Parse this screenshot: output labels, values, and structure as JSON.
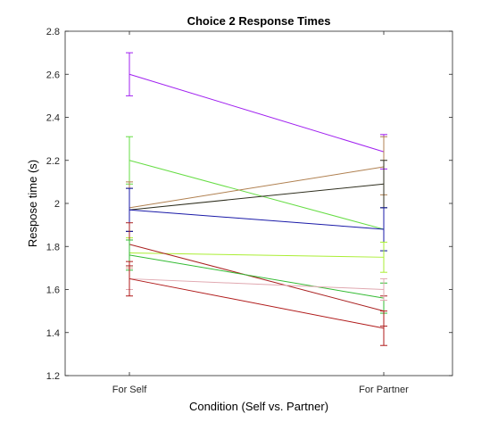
{
  "chart_data": {
    "type": "line",
    "title": "Choice 2 Response Times",
    "xlabel": "Condition (Self vs. Partner)",
    "ylabel": "Respose time (s)",
    "categories": [
      "For Self",
      "For Partner"
    ],
    "ylim": [
      1.2,
      2.8
    ],
    "yticks": [
      "1.2",
      "1.4",
      "1.6",
      "1.8",
      "2",
      "2.2",
      "2.4",
      "2.6",
      "2.8"
    ],
    "grid": false,
    "series": [
      {
        "values": [
          2.6,
          2.24
        ],
        "err": [
          [
            0.1,
            0.1
          ],
          [
            0.08,
            0.08
          ]
        ],
        "color": "#a020f0"
      },
      {
        "values": [
          2.2,
          1.88
        ],
        "err": [
          [
            0.11,
            0.11
          ],
          [
            0.1,
            0.1
          ]
        ],
        "color": "#66dd44"
      },
      {
        "values": [
          1.98,
          2.17
        ],
        "err": [
          [
            0.11,
            0.12
          ],
          [
            0.13,
            0.14
          ]
        ],
        "color": "#b08050"
      },
      {
        "values": [
          1.97,
          2.09
        ],
        "err": [
          [
            0.1,
            0.1
          ],
          [
            0.11,
            0.11
          ]
        ],
        "color": "#2f2f1f"
      },
      {
        "values": [
          1.97,
          1.88
        ],
        "err": [
          [
            0.1,
            0.1
          ],
          [
            0.1,
            0.1
          ]
        ],
        "color": "#1a1aa8"
      },
      {
        "values": [
          1.77,
          1.75
        ],
        "err": [
          [
            0.07,
            0.07
          ],
          [
            0.07,
            0.07
          ]
        ],
        "color": "#aaee33"
      },
      {
        "values": [
          1.81,
          1.5
        ],
        "err": [
          [
            0.1,
            0.1
          ],
          [
            0.07,
            0.07
          ]
        ],
        "color": "#aa2222"
      },
      {
        "values": [
          1.76,
          1.56
        ],
        "err": [
          [
            0.07,
            0.07
          ],
          [
            0.07,
            0.07
          ]
        ],
        "color": "#33bb33"
      },
      {
        "values": [
          1.65,
          1.6
        ],
        "err": [
          [
            0.05,
            0.05
          ],
          [
            0.05,
            0.05
          ]
        ],
        "color": "#e0a8b0"
      },
      {
        "values": [
          1.65,
          1.42
        ],
        "err": [
          [
            0.08,
            0.08
          ],
          [
            0.08,
            0.08
          ]
        ],
        "color": "#b01a1a"
      }
    ]
  }
}
